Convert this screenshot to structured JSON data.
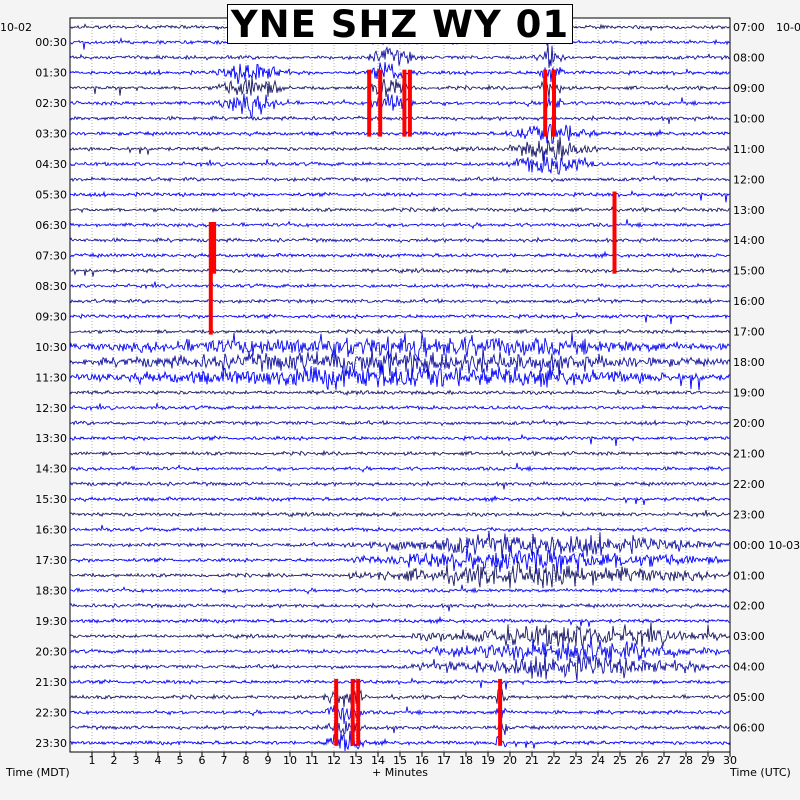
{
  "chart_data": {
    "type": "helicorder",
    "title": "YNE SHZ WY 01",
    "xlabel": "+ Minutes",
    "left_axis_label": "Time (MDT)",
    "right_axis_label": "Time (UTC)",
    "start_date_left": "10-02",
    "start_date_right": "10-0",
    "xlim": [
      0,
      30
    ],
    "x_ticks": [
      1,
      2,
      3,
      4,
      5,
      6,
      7,
      8,
      9,
      10,
      11,
      12,
      13,
      14,
      15,
      16,
      17,
      18,
      19,
      20,
      21,
      22,
      23,
      24,
      25,
      26,
      27,
      28,
      29,
      30
    ],
    "left_ticks": [
      "00:30",
      "01:30",
      "02:30",
      "03:30",
      "04:30",
      "05:30",
      "06:30",
      "07:30",
      "08:30",
      "09:30",
      "10:30",
      "11:30",
      "12:30",
      "13:30",
      "14:30",
      "15:30",
      "16:30",
      "17:30",
      "18:30",
      "19:30",
      "20:30",
      "21:30",
      "22:30",
      "23:30"
    ],
    "right_ticks": [
      "07:00",
      "08:00",
      "09:00",
      "10:00",
      "11:00",
      "12:00",
      "13:00",
      "14:00",
      "15:00",
      "16:00",
      "17:00",
      "18:00",
      "19:00",
      "20:00",
      "21:00",
      "22:00",
      "23:00",
      "00:00 10-03",
      "01:00",
      "02:00",
      "03:00",
      "04:00",
      "05:00",
      "06:00"
    ],
    "trace_rows": 48,
    "trace_colors": [
      "#1a1a66",
      "#0a0af0",
      "#1414a0",
      "#0000ff"
    ],
    "clip_color": "#ff0000",
    "grid": true,
    "events": [
      {
        "label": "",
        "row_start": 3,
        "row_end": 5,
        "x_start": 6.5,
        "x_end": 10
      },
      {
        "label": "",
        "row_start": 2,
        "row_end": 5,
        "x_start": 13.5,
        "x_end": 15.8
      },
      {
        "label": "",
        "row_start": 2,
        "row_end": 5,
        "x_start": 21.2,
        "x_end": 22.5
      },
      {
        "label": "",
        "row_start": 7,
        "row_end": 9,
        "x_start": 19.8,
        "x_end": 24
      },
      {
        "label": "",
        "row_start": 21,
        "row_end": 23,
        "x_start": 0,
        "x_end": 30
      },
      {
        "label": "",
        "row_start": 34,
        "row_end": 36,
        "x_start": 12.5,
        "x_end": 30
      },
      {
        "label": "",
        "row_start": 40,
        "row_end": 42,
        "x_start": 15.5,
        "x_end": 30
      },
      {
        "label": "",
        "row_start": 44,
        "row_end": 47,
        "x_start": 11.5,
        "x_end": 13.5
      },
      {
        "label": "",
        "row_start": 44,
        "row_end": 47,
        "x_start": 19.3,
        "x_end": 19.9
      }
    ]
  }
}
